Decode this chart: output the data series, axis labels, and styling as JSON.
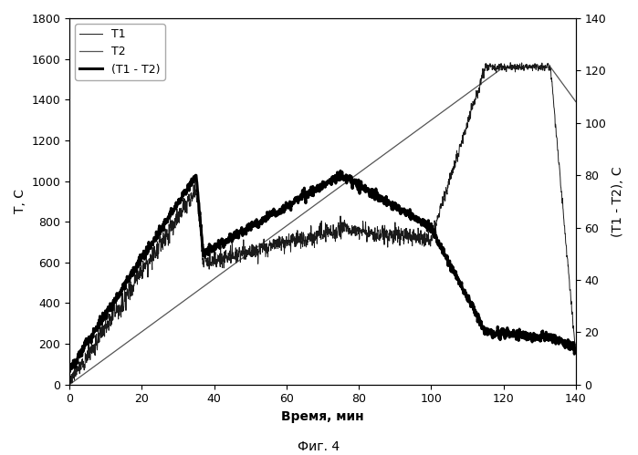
{
  "xlabel": "Время, мин",
  "ylabel_left": "T, C",
  "ylabel_right": "(T1 - T2), C",
  "caption": "Фиг. 4",
  "xlim": [
    0,
    140
  ],
  "ylim_left": [
    0,
    1800
  ],
  "ylim_right": [
    0,
    140
  ],
  "xticks": [
    0,
    20,
    40,
    60,
    80,
    100,
    120,
    140
  ],
  "yticks_left": [
    0,
    200,
    400,
    600,
    800,
    1000,
    1200,
    1400,
    1600,
    1800
  ],
  "yticks_right": [
    0,
    20,
    40,
    60,
    80,
    100,
    120,
    140
  ],
  "bg_color": "#ffffff"
}
